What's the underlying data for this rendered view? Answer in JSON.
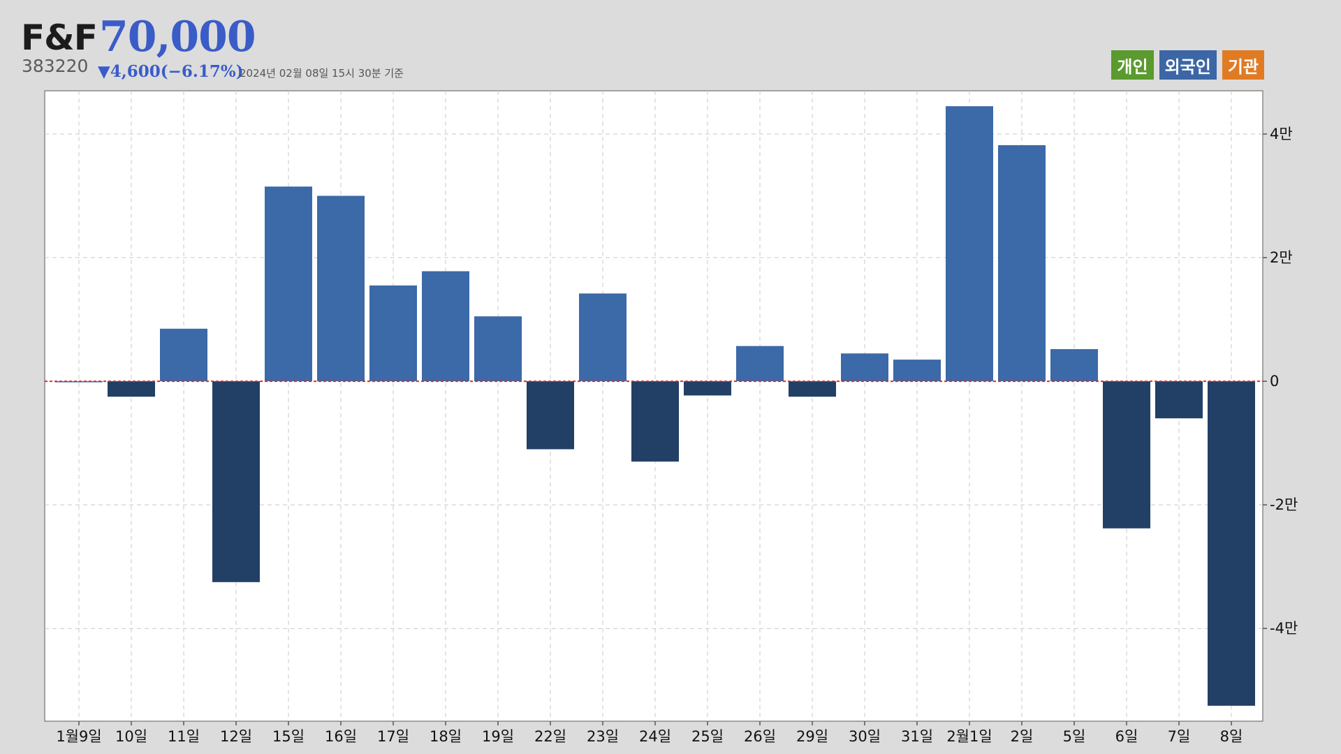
{
  "header": {
    "name": "F&F",
    "price": "70,000",
    "code": "383220",
    "change": "▼4,600(−6.17%)",
    "timestamp": "2024년 02월 08일 15시 30분 기준"
  },
  "legend": [
    {
      "label": "개인",
      "color": "#5a9a2e"
    },
    {
      "label": "외국인",
      "color": "#3c66a6"
    },
    {
      "label": "기관",
      "color": "#e07b24"
    }
  ],
  "chart_data": {
    "type": "bar",
    "categories": [
      "1월9일",
      "10일",
      "11일",
      "12일",
      "15일",
      "16일",
      "17일",
      "18일",
      "19일",
      "22일",
      "23일",
      "24일",
      "25일",
      "26일",
      "29일",
      "30일",
      "31일",
      "2월1일",
      "2일",
      "5일",
      "6일",
      "7일",
      "8일"
    ],
    "series": [
      {
        "name": "외국인",
        "values": [
          0,
          -2500,
          8500,
          -32500,
          31500,
          30000,
          15500,
          17800,
          10500,
          -11000,
          14200,
          -13000,
          -2300,
          5700,
          -2500,
          4500,
          3500,
          44500,
          38200,
          5200,
          -23800,
          -6000,
          -52500
        ]
      }
    ],
    "ylim": [
      -55000,
      47000
    ],
    "yticks": [
      {
        "value": 40000,
        "label": "4만"
      },
      {
        "value": 20000,
        "label": "2만"
      },
      {
        "value": 0,
        "label": "0"
      },
      {
        "value": -20000,
        "label": "-2만"
      },
      {
        "value": -40000,
        "label": "-4만"
      }
    ],
    "colors": {
      "positive": "#3c69a7",
      "negative": "#223f66",
      "zero_line": "#d22f2f"
    },
    "grid": true
  }
}
